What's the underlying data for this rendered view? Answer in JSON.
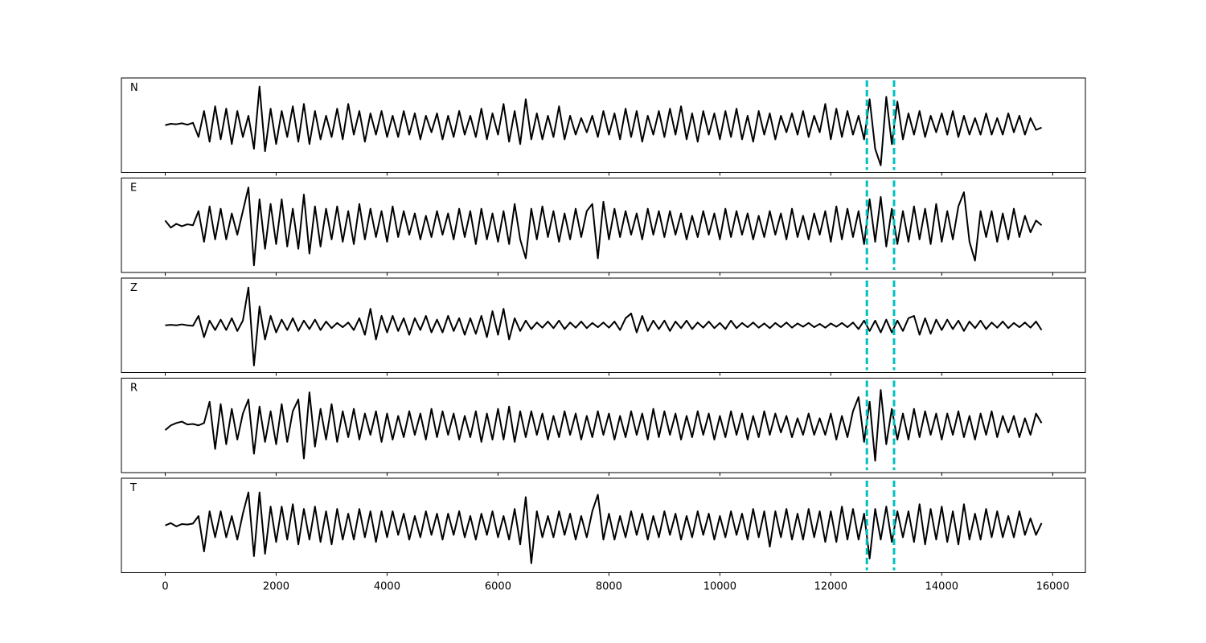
{
  "chart_data": {
    "type": "line",
    "panels": true,
    "x": [
      0,
      100,
      200,
      300,
      400,
      500,
      600,
      700,
      800,
      900,
      1000,
      1100,
      1200,
      1300,
      1400,
      1500,
      1600,
      1700,
      1800,
      1900,
      2000,
      2100,
      2200,
      2300,
      2400,
      2500,
      2600,
      2700,
      2800,
      2900,
      3000,
      3100,
      3200,
      3300,
      3400,
      3500,
      3600,
      3700,
      3800,
      3900,
      4000,
      4100,
      4200,
      4300,
      4400,
      4500,
      4600,
      4700,
      4800,
      4900,
      5000,
      5100,
      5200,
      5300,
      5400,
      5500,
      5600,
      5700,
      5800,
      5900,
      6000,
      6100,
      6200,
      6300,
      6400,
      6500,
      6600,
      6700,
      6800,
      6900,
      7000,
      7100,
      7200,
      7300,
      7400,
      7500,
      7600,
      7700,
      7800,
      7900,
      8000,
      8100,
      8200,
      8300,
      8400,
      8500,
      8600,
      8700,
      8800,
      8900,
      9000,
      9100,
      9200,
      9300,
      9400,
      9500,
      9600,
      9700,
      9800,
      9900,
      10000,
      10100,
      10200,
      10300,
      10400,
      10500,
      10600,
      10700,
      10800,
      10900,
      11000,
      11100,
      11200,
      11300,
      11400,
      11500,
      11600,
      11700,
      11800,
      11900,
      12000,
      12100,
      12200,
      12300,
      12400,
      12500,
      12600,
      12700,
      12800,
      12900,
      13000,
      13100,
      13200,
      13300,
      13400,
      13500,
      13600,
      13700,
      13800,
      13900,
      14000,
      14100,
      14200,
      14300,
      14400,
      14500,
      14600,
      14700,
      14800,
      14900,
      15000,
      15100,
      15200,
      15300,
      15400,
      15500,
      15600,
      15700,
      15800
    ],
    "series": [
      {
        "name": "N",
        "color": "#000000",
        "values": [
          0,
          0.03,
          0.02,
          0.04,
          0.01,
          0.05,
          -0.25,
          0.3,
          -0.35,
          0.4,
          -0.3,
          0.35,
          -0.4,
          0.3,
          -0.25,
          0.2,
          -0.5,
          0.82,
          -0.55,
          0.35,
          -0.4,
          0.3,
          -0.25,
          0.4,
          -0.35,
          0.45,
          -0.4,
          0.3,
          -0.3,
          0.2,
          -0.25,
          0.35,
          -0.3,
          0.45,
          -0.2,
          0.3,
          -0.35,
          0.25,
          -0.2,
          0.3,
          -0.25,
          0.2,
          -0.25,
          0.3,
          -0.2,
          0.25,
          -0.3,
          0.2,
          -0.15,
          0.25,
          -0.3,
          0.2,
          -0.25,
          0.3,
          -0.2,
          0.2,
          -0.25,
          0.35,
          -0.3,
          0.25,
          -0.2,
          0.45,
          -0.35,
          0.3,
          -0.4,
          0.55,
          -0.3,
          0.25,
          -0.3,
          0.2,
          -0.25,
          0.4,
          -0.3,
          0.2,
          -0.2,
          0.15,
          -0.15,
          0.2,
          -0.25,
          0.3,
          -0.2,
          0.25,
          -0.3,
          0.35,
          -0.25,
          0.3,
          -0.35,
          0.2,
          -0.2,
          0.3,
          -0.25,
          0.35,
          -0.2,
          0.4,
          -0.3,
          0.25,
          -0.35,
          0.3,
          -0.2,
          0.25,
          -0.3,
          0.3,
          -0.25,
          0.35,
          -0.3,
          0.2,
          -0.35,
          0.3,
          -0.2,
          0.25,
          -0.3,
          0.2,
          -0.15,
          0.25,
          -0.2,
          0.3,
          -0.25,
          0.2,
          -0.15,
          0.45,
          -0.3,
          0.35,
          -0.25,
          0.3,
          -0.2,
          0.2,
          -0.3,
          0.55,
          -0.5,
          -0.85,
          0.6,
          -0.4,
          0.5,
          -0.3,
          0.25,
          -0.2,
          0.3,
          -0.25,
          0.2,
          -0.15,
          0.25,
          -0.2,
          0.3,
          -0.25,
          0.2,
          -0.2,
          0.15,
          -0.2,
          0.25,
          -0.2,
          0.15,
          -0.2,
          0.25,
          -0.15,
          0.2,
          -0.2,
          0.15,
          -0.1,
          -0.05
        ]
      },
      {
        "name": "E",
        "color": "#000000",
        "values": [
          0.1,
          -0.05,
          0.03,
          -0.02,
          0.02,
          0,
          0.3,
          -0.35,
          0.4,
          -0.3,
          0.35,
          -0.3,
          0.25,
          -0.2,
          0.3,
          0.8,
          -0.85,
          0.55,
          -0.5,
          0.45,
          -0.4,
          0.55,
          -0.45,
          0.35,
          -0.5,
          0.65,
          -0.6,
          0.4,
          -0.45,
          0.35,
          -0.3,
          0.4,
          -0.35,
          0.3,
          -0.4,
          0.45,
          -0.3,
          0.35,
          -0.25,
          0.3,
          -0.35,
          0.4,
          -0.25,
          0.3,
          -0.2,
          0.25,
          -0.3,
          0.2,
          -0.25,
          0.3,
          -0.2,
          0.25,
          -0.3,
          0.35,
          -0.25,
          0.3,
          -0.4,
          0.35,
          -0.3,
          0.25,
          -0.35,
          0.3,
          -0.4,
          0.45,
          -0.3,
          -0.7,
          0.35,
          -0.3,
          0.4,
          -0.25,
          0.3,
          -0.35,
          0.25,
          -0.3,
          0.35,
          -0.25,
          0.3,
          0.45,
          -0.7,
          0.5,
          -0.3,
          0.35,
          -0.25,
          0.3,
          -0.2,
          0.25,
          -0.3,
          0.35,
          -0.2,
          0.3,
          -0.25,
          0.3,
          -0.2,
          0.25,
          -0.3,
          0.2,
          -0.25,
          0.3,
          -0.2,
          0.25,
          -0.3,
          0.35,
          -0.25,
          0.3,
          -0.2,
          0.25,
          -0.3,
          0.2,
          -0.25,
          0.3,
          -0.2,
          0.25,
          -0.3,
          0.35,
          -0.25,
          0.2,
          -0.3,
          0.25,
          -0.2,
          0.3,
          -0.35,
          0.4,
          -0.3,
          0.35,
          -0.25,
          0.3,
          -0.4,
          0.55,
          -0.35,
          0.6,
          -0.45,
          0.35,
          -0.4,
          0.3,
          -0.35,
          0.4,
          -0.3,
          0.35,
          -0.4,
          0.45,
          -0.35,
          0.3,
          -0.3,
          0.4,
          0.7,
          -0.35,
          -0.75,
          0.3,
          -0.25,
          0.3,
          -0.35,
          0.25,
          -0.3,
          0.35,
          -0.25,
          0.2,
          -0.15,
          0.1,
          0
        ]
      },
      {
        "name": "Z",
        "color": "#000000",
        "values": [
          0,
          0.01,
          0,
          0.02,
          0,
          -0.01,
          0.2,
          -0.25,
          0.1,
          -0.1,
          0.12,
          -0.1,
          0.15,
          -0.12,
          0.1,
          0.8,
          -0.85,
          0.4,
          -0.3,
          0.2,
          -0.15,
          0.12,
          -0.1,
          0.15,
          -0.12,
          0.1,
          -0.08,
          0.12,
          -0.1,
          0.08,
          -0.06,
          0.05,
          -0.04,
          0.06,
          -0.1,
          0.15,
          -0.2,
          0.35,
          -0.3,
          0.2,
          -0.15,
          0.2,
          -0.12,
          0.15,
          -0.2,
          0.15,
          -0.1,
          0.2,
          -0.15,
          0.12,
          -0.15,
          0.2,
          -0.12,
          0.15,
          -0.2,
          0.15,
          -0.18,
          0.2,
          -0.25,
          0.3,
          -0.2,
          0.35,
          -0.3,
          0.15,
          -0.12,
          0.1,
          -0.08,
          0.06,
          -0.05,
          0.08,
          -0.06,
          0.1,
          -0.08,
          0.06,
          -0.05,
          0.08,
          -0.06,
          0.05,
          -0.04,
          0.06,
          -0.05,
          0.08,
          -0.1,
          0.15,
          0.25,
          -0.15,
          0.2,
          -0.12,
          0.1,
          -0.08,
          0.1,
          -0.12,
          0.08,
          -0.06,
          0.1,
          -0.08,
          0.06,
          -0.05,
          0.08,
          -0.06,
          0.05,
          -0.08,
          0.1,
          -0.06,
          0.05,
          -0.04,
          0.06,
          -0.05,
          0.04,
          -0.06,
          0.05,
          -0.04,
          0.06,
          -0.05,
          0.04,
          -0.03,
          0.05,
          -0.04,
          0.03,
          -0.05,
          0.04,
          -0.03,
          0.05,
          -0.04,
          0.06,
          -0.08,
          0.1,
          -0.12,
          0.1,
          -0.15,
          0.12,
          -0.15,
          0.1,
          -0.12,
          0.15,
          0.2,
          -0.2,
          0.15,
          -0.18,
          0.12,
          -0.1,
          0.12,
          -0.08,
          0.1,
          -0.12,
          0.08,
          -0.06,
          0.1,
          -0.08,
          0.06,
          -0.05,
          0.08,
          -0.06,
          0.05,
          -0.04,
          0.06,
          -0.05,
          0.08,
          -0.1
        ]
      },
      {
        "name": "R",
        "color": "#000000",
        "values": [
          -0.1,
          0,
          0.05,
          0.08,
          0.02,
          0.03,
          0,
          0.05,
          0.5,
          -0.5,
          0.45,
          -0.4,
          0.35,
          -0.3,
          0.25,
          0.55,
          -0.6,
          0.4,
          -0.35,
          0.3,
          -0.4,
          0.45,
          -0.35,
          0.3,
          0.55,
          -0.7,
          0.7,
          -0.45,
          0.35,
          -0.3,
          0.45,
          -0.35,
          0.3,
          -0.25,
          0.35,
          -0.3,
          0.25,
          -0.2,
          0.3,
          -0.35,
          0.25,
          -0.3,
          0.2,
          -0.25,
          0.3,
          -0.2,
          0.25,
          -0.3,
          0.35,
          -0.25,
          0.3,
          -0.2,
          0.25,
          -0.3,
          0.2,
          -0.25,
          0.3,
          -0.35,
          0.25,
          -0.3,
          0.35,
          -0.3,
          0.4,
          -0.35,
          0.3,
          -0.25,
          0.3,
          -0.2,
          0.25,
          -0.3,
          0.2,
          -0.25,
          0.3,
          -0.2,
          0.25,
          -0.3,
          0.2,
          -0.25,
          0.3,
          -0.2,
          0.25,
          -0.3,
          0.2,
          -0.25,
          0.3,
          -0.2,
          0.25,
          -0.3,
          0.35,
          -0.25,
          0.3,
          -0.2,
          0.25,
          -0.3,
          0.2,
          -0.25,
          0.3,
          -0.2,
          0.25,
          -0.3,
          0.2,
          -0.25,
          0.3,
          -0.2,
          0.25,
          -0.3,
          0.2,
          -0.25,
          0.3,
          -0.2,
          0.25,
          -0.15,
          0.2,
          -0.25,
          0.15,
          -0.2,
          0.25,
          -0.2,
          0.15,
          -0.2,
          0.25,
          -0.3,
          0.2,
          -0.25,
          0.3,
          0.6,
          -0.35,
          0.5,
          -0.75,
          0.75,
          -0.4,
          0.35,
          -0.3,
          0.25,
          -0.3,
          0.35,
          -0.25,
          0.3,
          -0.2,
          0.25,
          -0.3,
          0.25,
          -0.2,
          0.3,
          -0.25,
          0.2,
          -0.3,
          0.25,
          -0.2,
          0.3,
          -0.25,
          0.2,
          -0.15,
          0.2,
          -0.25,
          0.15,
          -0.2,
          0.25,
          0.05
        ]
      },
      {
        "name": "T",
        "color": "#000000",
        "values": [
          0,
          0.05,
          -0.02,
          0.03,
          0.02,
          0.04,
          0.2,
          -0.55,
          0.3,
          -0.25,
          0.3,
          -0.25,
          0.2,
          -0.3,
          0.25,
          0.7,
          -0.65,
          0.7,
          -0.6,
          0.4,
          -0.35,
          0.4,
          -0.3,
          0.45,
          -0.4,
          0.35,
          -0.3,
          0.4,
          -0.35,
          0.3,
          -0.4,
          0.35,
          -0.3,
          0.25,
          -0.3,
          0.35,
          -0.25,
          0.3,
          -0.35,
          0.3,
          -0.25,
          0.3,
          -0.2,
          0.25,
          -0.3,
          0.2,
          -0.25,
          0.3,
          -0.2,
          0.25,
          -0.3,
          0.25,
          -0.2,
          0.3,
          -0.25,
          0.2,
          -0.3,
          0.25,
          -0.2,
          0.3,
          -0.25,
          0.2,
          -0.3,
          0.35,
          -0.4,
          0.6,
          -0.8,
          0.3,
          -0.25,
          0.2,
          -0.25,
          0.3,
          -0.2,
          0.25,
          -0.3,
          0.2,
          -0.25,
          0.3,
          0.65,
          -0.3,
          0.25,
          -0.3,
          0.2,
          -0.25,
          0.3,
          -0.2,
          0.25,
          -0.3,
          0.2,
          -0.25,
          0.3,
          -0.2,
          0.25,
          -0.3,
          0.2,
          -0.25,
          0.3,
          -0.2,
          0.25,
          -0.3,
          0.2,
          -0.25,
          0.3,
          -0.2,
          0.25,
          -0.3,
          0.35,
          -0.25,
          0.3,
          -0.45,
          0.3,
          -0.25,
          0.35,
          -0.3,
          0.25,
          -0.3,
          0.35,
          -0.25,
          0.3,
          -0.35,
          0.3,
          -0.35,
          0.4,
          -0.3,
          0.35,
          -0.3,
          0.25,
          -0.7,
          0.35,
          -0.3,
          0.4,
          -0.35,
          0.3,
          -0.25,
          0.3,
          -0.35,
          0.45,
          -0.4,
          0.35,
          -0.3,
          0.4,
          -0.35,
          0.3,
          -0.4,
          0.45,
          -0.3,
          0.25,
          -0.3,
          0.35,
          -0.25,
          0.3,
          -0.25,
          0.2,
          -0.25,
          0.3,
          -0.2,
          0.15,
          -0.2,
          0.05
        ]
      }
    ],
    "xlim": [
      -790,
      16590
    ],
    "ylim": [
      -1,
      1
    ],
    "xticks": [
      0,
      2000,
      4000,
      6000,
      8000,
      10000,
      12000,
      14000,
      16000
    ],
    "vlines": [
      12650,
      13140
    ],
    "vline_color": "#00bfbf",
    "vline_style": "dashed"
  }
}
